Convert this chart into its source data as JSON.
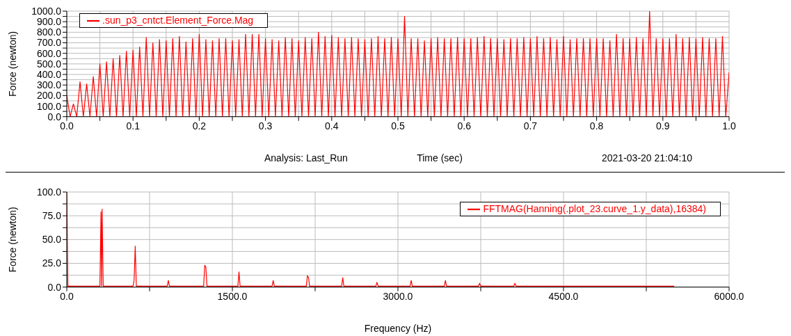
{
  "chart_data": [
    {
      "type": "line",
      "xlabel": "Time (sec)",
      "ylabel": "Force (newton)",
      "annotations": [
        "Analysis:  Last_Run",
        "2021-03-20 21:04:10"
      ],
      "legend": "top left",
      "grid": true,
      "marker": "none",
      "line_style": "solid",
      "xlim": [
        0,
        1
      ],
      "ylim": [
        0,
        1000
      ],
      "xticks": [
        {
          "value": 0,
          "label": "0.0"
        },
        {
          "value": 0.05,
          "label": null
        },
        {
          "value": 0.1,
          "label": "0.1"
        },
        {
          "value": 0.15,
          "label": null
        },
        {
          "value": 0.2,
          "label": "0.2"
        },
        {
          "value": 0.25,
          "label": null
        },
        {
          "value": 0.3,
          "label": "0.3"
        },
        {
          "value": 0.35,
          "label": null
        },
        {
          "value": 0.4,
          "label": "0.4"
        },
        {
          "value": 0.45,
          "label": null
        },
        {
          "value": 0.5,
          "label": "0.5"
        },
        {
          "value": 0.55,
          "label": null
        },
        {
          "value": 0.6,
          "label": "0.6"
        },
        {
          "value": 0.65,
          "label": null
        },
        {
          "value": 0.7,
          "label": "0.7"
        },
        {
          "value": 0.75,
          "label": null
        },
        {
          "value": 0.8,
          "label": "0.8"
        },
        {
          "value": 0.85,
          "label": null
        },
        {
          "value": 0.9,
          "label": "0.9"
        },
        {
          "value": 0.95,
          "label": null
        },
        {
          "value": 1,
          "label": "1.0"
        }
      ],
      "yticks": [
        {
          "value": 0,
          "label": "0.0"
        },
        {
          "value": 50,
          "label": null
        },
        {
          "value": 100,
          "label": "100.0"
        },
        {
          "value": 150,
          "label": null
        },
        {
          "value": 200,
          "label": "200.0"
        },
        {
          "value": 250,
          "label": null
        },
        {
          "value": 300,
          "label": "300.0"
        },
        {
          "value": 350,
          "label": null
        },
        {
          "value": 400,
          "label": "400.0"
        },
        {
          "value": 450,
          "label": null
        },
        {
          "value": 500,
          "label": "500.0"
        },
        {
          "value": 550,
          "label": null
        },
        {
          "value": 600,
          "label": "600.0"
        },
        {
          "value": 650,
          "label": null
        },
        {
          "value": 700,
          "label": "700.0"
        },
        {
          "value": 750,
          "label": null
        },
        {
          "value": 800,
          "label": "800.0"
        },
        {
          "value": 850,
          "label": null
        },
        {
          "value": 900,
          "label": "900.0"
        },
        {
          "value": 950,
          "label": null
        },
        {
          "value": 1000,
          "label": "1000.0"
        }
      ],
      "series": [
        {
          "name": ".sun_p3_cntct.Element_Force.Mag",
          "color": "#ff0000",
          "x": [
            0,
            0.005,
            0.01,
            0.015,
            0.02,
            0.025,
            0.03,
            0.035,
            0.04,
            0.045,
            0.05,
            0.055,
            0.06,
            0.065,
            0.07,
            0.075,
            0.08,
            0.085,
            0.09,
            0.095,
            0.1,
            0.105,
            0.11,
            0.115,
            0.12,
            0.125,
            0.13,
            0.135,
            0.14,
            0.145,
            0.15,
            0.155,
            0.16,
            0.165,
            0.17,
            0.175,
            0.18,
            0.185,
            0.19,
            0.195,
            0.2,
            0.205,
            0.21,
            0.215,
            0.22,
            0.225,
            0.23,
            0.235,
            0.24,
            0.245,
            0.25,
            0.255,
            0.26,
            0.265,
            0.27,
            0.275,
            0.28,
            0.285,
            0.29,
            0.295,
            0.3,
            0.305,
            0.31,
            0.315,
            0.32,
            0.325,
            0.33,
            0.335,
            0.34,
            0.345,
            0.35,
            0.355,
            0.36,
            0.365,
            0.37,
            0.375,
            0.38,
            0.385,
            0.39,
            0.395,
            0.4,
            0.405,
            0.41,
            0.415,
            0.42,
            0.425,
            0.43,
            0.435,
            0.44,
            0.445,
            0.45,
            0.455,
            0.46,
            0.465,
            0.47,
            0.475,
            0.48,
            0.485,
            0.49,
            0.495,
            0.5,
            0.505,
            0.51,
            0.515,
            0.52,
            0.525,
            0.53,
            0.535,
            0.54,
            0.545,
            0.55,
            0.555,
            0.56,
            0.565,
            0.57,
            0.575,
            0.58,
            0.585,
            0.59,
            0.595,
            0.6,
            0.605,
            0.61,
            0.615,
            0.62,
            0.625,
            0.63,
            0.635,
            0.64,
            0.645,
            0.65,
            0.655,
            0.66,
            0.665,
            0.67,
            0.675,
            0.68,
            0.685,
            0.69,
            0.695,
            0.7,
            0.705,
            0.71,
            0.715,
            0.72,
            0.725,
            0.73,
            0.735,
            0.74,
            0.745,
            0.75,
            0.755,
            0.76,
            0.765,
            0.77,
            0.775,
            0.78,
            0.785,
            0.79,
            0.795,
            0.8,
            0.805,
            0.81,
            0.815,
            0.82,
            0.825,
            0.83,
            0.835,
            0.84,
            0.845,
            0.85,
            0.855,
            0.86,
            0.865,
            0.87,
            0.875,
            0.88,
            0.885,
            0.89,
            0.895,
            0.9,
            0.905,
            0.91,
            0.915,
            0.92,
            0.925,
            0.93,
            0.935,
            0.94,
            0.945,
            0.95,
            0.955,
            0.96,
            0.965,
            0.97,
            0.975,
            0.98,
            0.985,
            0.99,
            0.995,
            1
          ],
          "values": [
            200,
            0,
            120,
            0,
            330,
            0,
            310,
            0,
            380,
            0,
            500,
            0,
            520,
            0,
            550,
            0,
            580,
            0,
            620,
            0,
            630,
            0,
            660,
            0,
            750,
            0,
            700,
            0,
            730,
            0,
            720,
            0,
            740,
            0,
            760,
            0,
            710,
            0,
            740,
            0,
            780,
            0,
            730,
            0,
            720,
            0,
            740,
            0,
            740,
            0,
            720,
            0,
            730,
            0,
            780,
            0,
            780,
            0,
            780,
            0,
            740,
            0,
            730,
            0,
            720,
            0,
            750,
            0,
            740,
            0,
            720,
            0,
            750,
            0,
            740,
            0,
            800,
            0,
            760,
            0,
            770,
            0,
            750,
            0,
            740,
            0,
            750,
            0,
            740,
            0,
            730,
            0,
            740,
            0,
            760,
            0,
            740,
            0,
            750,
            0,
            740,
            0,
            950,
            0,
            740,
            0,
            740,
            0,
            720,
            0,
            740,
            0,
            750,
            0,
            740,
            0,
            740,
            0,
            750,
            0,
            740,
            0,
            740,
            0,
            750,
            0,
            760,
            0,
            740,
            0,
            740,
            0,
            730,
            0,
            740,
            0,
            740,
            0,
            750,
            0,
            740,
            0,
            760,
            0,
            740,
            0,
            750,
            0,
            730,
            0,
            760,
            0,
            730,
            0,
            740,
            0,
            740,
            0,
            740,
            0,
            740,
            0,
            740,
            0,
            720,
            0,
            780,
            0,
            740,
            0,
            740,
            0,
            750,
            0,
            740,
            0,
            1000,
            0,
            740,
            0,
            740,
            0,
            740,
            0,
            780,
            0,
            740,
            0,
            750,
            0,
            740,
            0,
            750,
            0,
            740,
            0,
            740,
            0,
            760,
            0,
            420
          ]
        }
      ]
    },
    {
      "type": "line",
      "xlabel": "Frequency (Hz)",
      "ylabel": "Force (newton)",
      "legend": "top right",
      "grid": true,
      "marker": "none",
      "line_style": "solid",
      "xlim": [
        0,
        6000
      ],
      "ylim": [
        0,
        100
      ],
      "xticks": [
        {
          "value": 0,
          "label": "0.0"
        },
        {
          "value": 750,
          "label": null
        },
        {
          "value": 1500,
          "label": "1500.0"
        },
        {
          "value": 2250,
          "label": null
        },
        {
          "value": 3000,
          "label": "3000.0"
        },
        {
          "value": 3750,
          "label": null
        },
        {
          "value": 4500,
          "label": "4500.0"
        },
        {
          "value": 5250,
          "label": null
        },
        {
          "value": 6000,
          "label": "6000.0"
        }
      ],
      "yticks": [
        {
          "value": 0,
          "label": "0.0"
        },
        {
          "value": 12.5,
          "label": null
        },
        {
          "value": 25,
          "label": "25.0"
        },
        {
          "value": 37.5,
          "label": null
        },
        {
          "value": 50,
          "label": "50.0"
        },
        {
          "value": 62.5,
          "label": null
        },
        {
          "value": 75,
          "label": "75.0"
        },
        {
          "value": 87.5,
          "label": null
        },
        {
          "value": 100,
          "label": "100.0"
        }
      ],
      "series": [
        {
          "name": "FFTMAG(Hanning(.plot_23.curve_1.y_data),16384)",
          "color": "#ff0000",
          "x": [
            0,
            10,
            300,
            310,
            315,
            320,
            330,
            600,
            610,
            620,
            630,
            910,
            920,
            930,
            1240,
            1250,
            1260,
            1270,
            1550,
            1560,
            1570,
            1860,
            1870,
            1880,
            2170,
            2180,
            2190,
            2200,
            2490,
            2500,
            2510,
            2800,
            2810,
            2820,
            3110,
            3120,
            3130,
            3420,
            3430,
            3440,
            3730,
            3740,
            3750,
            4050,
            4060,
            4070,
            5500
          ],
          "values": [
            100,
            1,
            1,
            79,
            1,
            82,
            1,
            1,
            7,
            43,
            1,
            1,
            7,
            1,
            1,
            23,
            21,
            1,
            1,
            16,
            1,
            1,
            7,
            1,
            1,
            12,
            10,
            1,
            1,
            10,
            1,
            1,
            5,
            1,
            1,
            7,
            1,
            1,
            7,
            1,
            1,
            4,
            1,
            1,
            4,
            1,
            1
          ]
        }
      ]
    }
  ]
}
